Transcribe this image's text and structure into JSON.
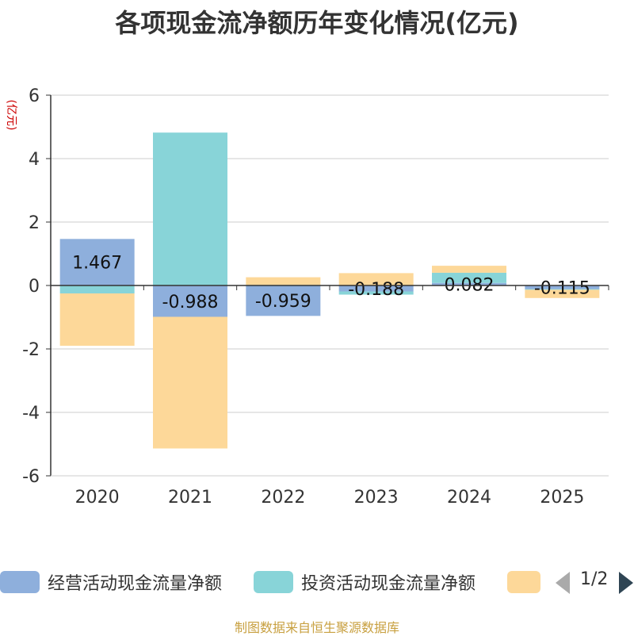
{
  "chart_data": {
    "type": "bar",
    "title": "各项现金流净额历年变化情况(亿元)",
    "ylabel": "(亿元)",
    "xlabel": "",
    "categories": [
      "2020",
      "2021",
      "2022",
      "2023",
      "2024",
      "2025"
    ],
    "ylim": [
      -6,
      6
    ],
    "yticks": [
      -6,
      -4,
      -2,
      0,
      2,
      4,
      6
    ],
    "grid": true,
    "stacked": true,
    "series": [
      {
        "name": "经营活动现金流量净额",
        "color": "#8eafdc",
        "values": [
          1.467,
          -0.988,
          -0.959,
          -0.188,
          0.082,
          -0.115
        ],
        "labels": [
          "1.467",
          "-0.988",
          "-0.959",
          "-0.188",
          "0.082",
          "-0.115"
        ]
      },
      {
        "name": "投资活动现金流量净额",
        "color": "#88d4d8",
        "values": [
          -0.25,
          4.82,
          0.02,
          -0.1,
          0.32,
          -0.02
        ]
      },
      {
        "name": "",
        "color": "#fdd899",
        "values": [
          -1.65,
          -4.15,
          0.24,
          0.39,
          0.22,
          -0.26
        ]
      }
    ]
  },
  "legend": {
    "page": "1/2",
    "prev_icon": "arrow-left-icon",
    "next_icon": "arrow-right-icon"
  },
  "source_text": "制图数据来自恒生聚源数据库"
}
